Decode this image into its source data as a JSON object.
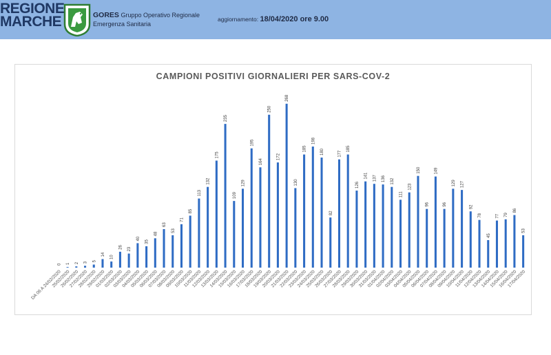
{
  "header": {
    "logo_line1": "REGIONE",
    "logo_line2": "MARCHE",
    "org_name": "GORES",
    "org_line1_rest": "Gruppo Operativo Regionale",
    "org_line2": "Emergenza Sanitaria",
    "update_label": "aggiornamento:",
    "update_value": "18/04/2020 ore 9.00",
    "background_color": "#8eb4e3"
  },
  "chart_data": {
    "type": "bar",
    "title": "CAMPIONI POSITIVI GIORNALIERI PER SARS-COV-2",
    "xlabel": "",
    "ylabel": "",
    "ylim": [
      0,
      270
    ],
    "grid": false,
    "legend": "none",
    "bar_color": "#2f6cc4",
    "categories": [
      "DA 06 A 24/02/2020",
      "25/02/2020",
      "26/02/2020",
      "27/02/2020",
      "28/02/2020",
      "29/02/2020",
      "01/03/2020",
      "02/03/2020",
      "03/03/2020",
      "04/03/2020",
      "05/03/2020",
      "06/03/2020",
      "07/03/2020",
      "08/03/2020",
      "09/03/2020",
      "10/03/2020",
      "11/03/2020",
      "12/03/2020",
      "13/03/2020",
      "14/03/2020",
      "15/03/2020",
      "16/03/2020",
      "17/03/2020",
      "18/03/2020",
      "19/03/2020",
      "20/03/2020",
      "21/03/2020",
      "22/03/2020",
      "23/03/2020",
      "24/03/2020",
      "25/03/2020",
      "26/03/2020",
      "27/03/2020",
      "28/03/2020",
      "29/03/2020",
      "30/03/2020",
      "31/03/2020",
      "01/04/2020",
      "02/04/2020",
      "03/04/2020",
      "04/04/2020",
      "05/04/2020",
      "06/04/2020",
      "07/04/2020",
      "08/04/2020",
      "09/04/2020",
      "10/04/2020",
      "11/04/2020",
      "12/04/2020",
      "13/04/2020",
      "14/04/2020",
      "15/04/2020",
      "16/04/2020",
      "17/04/2020"
    ],
    "values": [
      0,
      1,
      2,
      3,
      5,
      14,
      10,
      26,
      23,
      40,
      35,
      48,
      63,
      53,
      71,
      85,
      113,
      132,
      175,
      235,
      109,
      129,
      195,
      164,
      250,
      172,
      268,
      130,
      185,
      198,
      180,
      82,
      177,
      185,
      126,
      141,
      137,
      136,
      132,
      111,
      123,
      150,
      96,
      149,
      96,
      129,
      127,
      92,
      78,
      45,
      77,
      79,
      86,
      53
    ],
    "x_tick_labels": [
      "DA 06 A 24/02/2020",
      "25/02/2020",
      "26/02/2020",
      "27/02/2020",
      "28/02/2020",
      "29/02/2020",
      "01/03/2020",
      "02/03/2020",
      "03/03/2020",
      "04/03/2020",
      "05/03/2020",
      "06/03/2020",
      "07/03/2020",
      "08/03/2020",
      "09/03/2020",
      "10/03/2020",
      "11/03/2020",
      "12/03/2020",
      "13/03/2020",
      "14/03/2020",
      "15/03/2020",
      "16/03/2020",
      "17/03/2020",
      "18/03/2020",
      "19/03/2020",
      "20/03/2020",
      "21/03/2020",
      "22/03/2020",
      "23/03/2020",
      "24/03/2020",
      "25/03/2020",
      "26/03/2020",
      "27/03/2020",
      "28/03/2020",
      "29/03/2020",
      "30/03/2020",
      "31/03/2020",
      "01/04/2020",
      "02/04/2020",
      "03/04/2020",
      "04/04/2020",
      "05/04/2020",
      "06/04/2020",
      "07/04/2020",
      "08/04/2020",
      "09/04/2020",
      "10/04/2020",
      "11/04/2020",
      "12/04/2020",
      "13/04/2020",
      "14/04/2020",
      "15/04/2020",
      "16/04/2020",
      "17/04/2020"
    ]
  }
}
